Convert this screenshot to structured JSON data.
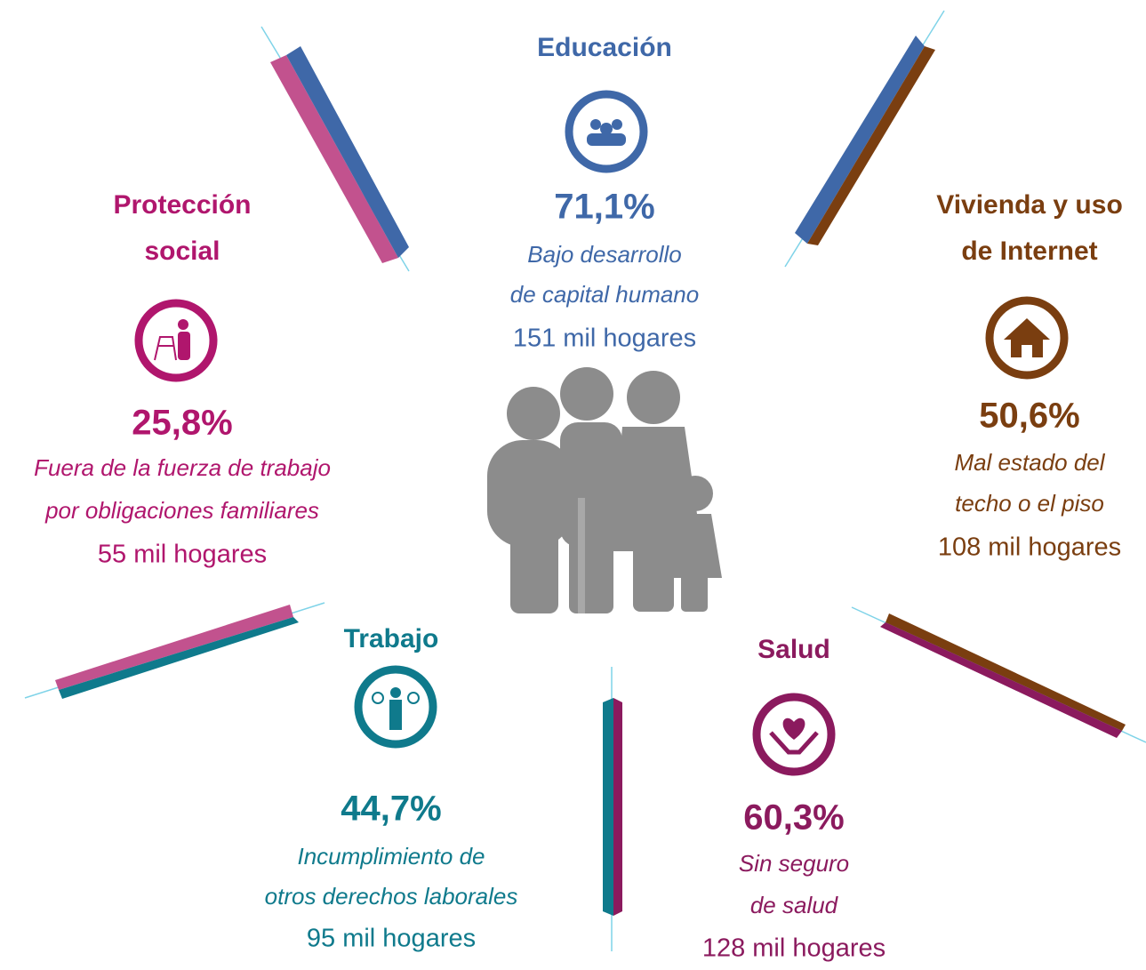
{
  "sections": [
    {
      "title_lines": [
        "Educación"
      ],
      "percent": "71,1%",
      "description_lines": [
        "Bajo desarrollo",
        "de capital humano"
      ],
      "households": "151 mil hogares"
    },
    {
      "title_lines": [
        "Protección",
        "social"
      ],
      "percent": "25,8%",
      "description_lines": [
        "Fuera de la fuerza de trabajo",
        "por obligaciones familiares"
      ],
      "households": "55 mil hogares"
    },
    {
      "title_lines": [
        "Vivienda y uso",
        "de Internet"
      ],
      "percent": "50,6%",
      "description_lines": [
        "Mal estado del",
        "techo o el piso"
      ],
      "households": "108 mil hogares"
    },
    {
      "title_lines": [
        "Trabajo"
      ],
      "percent": "44,7%",
      "description_lines": [
        "Incumplimiento de",
        "otros derechos laborales"
      ],
      "households": "95 mil hogares"
    },
    {
      "title_lines": [
        "Salud"
      ],
      "percent": "60,3%",
      "description_lines": [
        "Sin seguro",
        "de salud"
      ],
      "households": "128 mil hogares"
    }
  ]
}
